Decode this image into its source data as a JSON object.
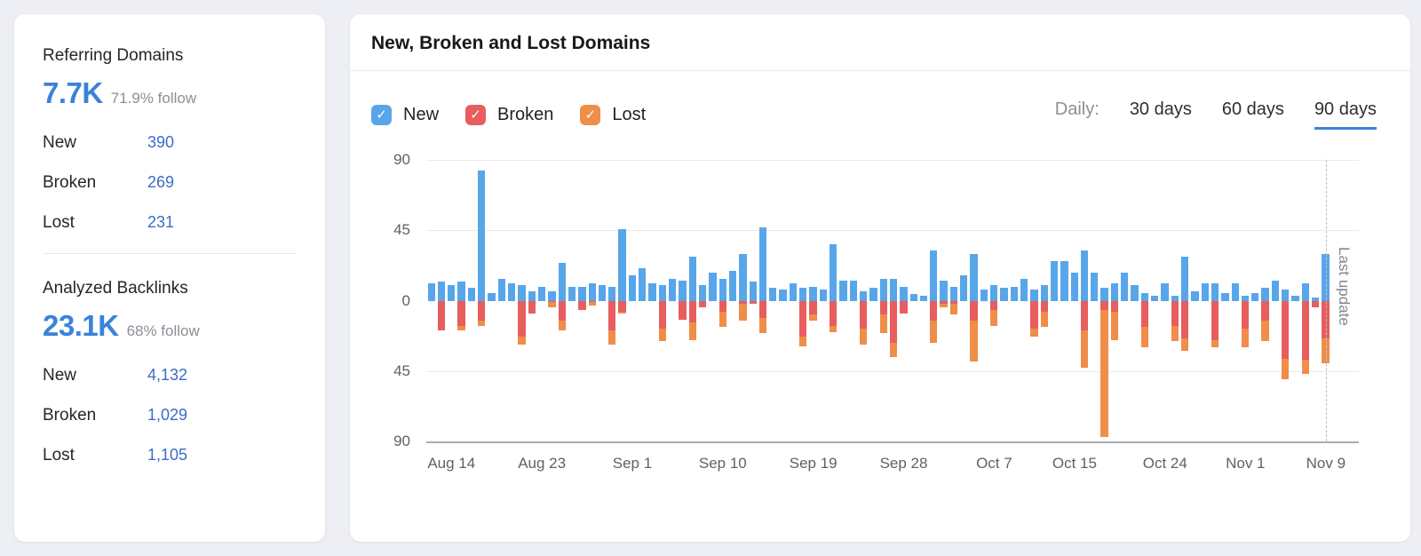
{
  "summary_card": {
    "referring_domains": {
      "title": "Referring Domains",
      "value": "7.7K",
      "follow": "71.9% follow",
      "rows": [
        {
          "label": "New",
          "value": "390"
        },
        {
          "label": "Broken",
          "value": "269"
        },
        {
          "label": "Lost",
          "value": "231"
        }
      ]
    },
    "analyzed_backlinks": {
      "title": "Analyzed Backlinks",
      "value": "23.1K",
      "follow": "68% follow",
      "rows": [
        {
          "label": "New",
          "value": "4,132"
        },
        {
          "label": "Broken",
          "value": "1,029"
        },
        {
          "label": "Lost",
          "value": "1,105"
        }
      ]
    }
  },
  "chart_card": {
    "title": "New, Broken and Lost Domains",
    "legend": [
      {
        "label": "New",
        "color": "#58a6ea",
        "checked": true
      },
      {
        "label": "Broken",
        "color": "#e85d5d",
        "checked": true
      },
      {
        "label": "Lost",
        "color": "#ef8e49",
        "checked": true
      }
    ],
    "period": {
      "label": "Daily:",
      "options": [
        "30 days",
        "60 days",
        "90 days"
      ],
      "selected": "90 days"
    },
    "last_update_label": "Last update"
  },
  "chart_data": {
    "type": "bar",
    "stacked": true,
    "orientation": "diverging",
    "days": 90,
    "ylim": [
      -90,
      90
    ],
    "y_ticks": [
      "90",
      "45",
      "0",
      "45",
      "90"
    ],
    "x_ticks": [
      {
        "label": "Aug 14",
        "day": 3
      },
      {
        "label": "Aug 23",
        "day": 12
      },
      {
        "label": "Sep 1",
        "day": 21
      },
      {
        "label": "Sep 10",
        "day": 30
      },
      {
        "label": "Sep 19",
        "day": 39
      },
      {
        "label": "Sep 28",
        "day": 48
      },
      {
        "label": "Oct 7",
        "day": 57
      },
      {
        "label": "Oct 15",
        "day": 65
      },
      {
        "label": "Oct 24",
        "day": 74
      },
      {
        "label": "Nov 1",
        "day": 82
      },
      {
        "label": "Nov 9",
        "day": 90
      }
    ],
    "last_update_day": 90,
    "series": [
      {
        "name": "New",
        "color": "#58a6ea",
        "direction": "up",
        "values": [
          11,
          12,
          10,
          12,
          8,
          83,
          5,
          14,
          11,
          10,
          6,
          9,
          6,
          24,
          9,
          9,
          11,
          10,
          9,
          46,
          16,
          21,
          11,
          10,
          14,
          13,
          28,
          10,
          18,
          14,
          19,
          30,
          12,
          47,
          8,
          7,
          11,
          8,
          9,
          7,
          36,
          13,
          13,
          6,
          8,
          14,
          14,
          9,
          4,
          3,
          32,
          13,
          9,
          16,
          30,
          7,
          10,
          8,
          9,
          14,
          7,
          10,
          25,
          25,
          18,
          32,
          18,
          8,
          11,
          18,
          10,
          5,
          3,
          11,
          3,
          28,
          6,
          11,
          11,
          5,
          11,
          3,
          5,
          8,
          13,
          7,
          3,
          11,
          2,
          30
        ]
      },
      {
        "name": "Broken",
        "color": "#e85d5d",
        "direction": "down",
        "values": [
          0,
          19,
          0,
          16,
          0,
          13,
          0,
          0,
          0,
          23,
          8,
          0,
          1,
          13,
          0,
          6,
          1,
          0,
          19,
          7,
          0,
          0,
          0,
          18,
          0,
          12,
          14,
          4,
          0,
          7,
          0,
          2,
          2,
          11,
          0,
          0,
          0,
          23,
          9,
          0,
          16,
          0,
          0,
          18,
          0,
          9,
          27,
          8,
          0,
          0,
          13,
          2,
          2,
          0,
          13,
          0,
          6,
          0,
          0,
          0,
          18,
          7,
          0,
          0,
          0,
          19,
          0,
          6,
          7,
          0,
          0,
          17,
          0,
          0,
          16,
          24,
          0,
          0,
          25,
          0,
          0,
          18,
          0,
          13,
          0,
          37,
          0,
          38,
          4,
          24
        ]
      },
      {
        "name": "Lost",
        "color": "#ef8e49",
        "direction": "down",
        "values": [
          0,
          0,
          0,
          3,
          0,
          3,
          0,
          0,
          0,
          5,
          0,
          0,
          3,
          6,
          0,
          0,
          2,
          0,
          9,
          1,
          0,
          0,
          0,
          8,
          0,
          0,
          11,
          0,
          0,
          10,
          0,
          11,
          0,
          10,
          0,
          0,
          0,
          6,
          4,
          0,
          4,
          0,
          0,
          10,
          0,
          12,
          9,
          0,
          0,
          0,
          14,
          2,
          7,
          0,
          26,
          0,
          10,
          0,
          0,
          0,
          5,
          10,
          0,
          0,
          0,
          24,
          0,
          81,
          18,
          0,
          0,
          13,
          0,
          0,
          10,
          8,
          0,
          0,
          5,
          0,
          0,
          12,
          0,
          13,
          0,
          13,
          0,
          9,
          0,
          16
        ]
      }
    ]
  },
  "colors": {
    "accent_blue": "#3b82d9",
    "link_blue": "#3b6cc8",
    "bar_new": "#58a6ea",
    "bar_broken": "#e85d5d",
    "bar_lost": "#ef8e49",
    "page_bg": "#edeff4",
    "axis_gray": "#5b626b"
  }
}
